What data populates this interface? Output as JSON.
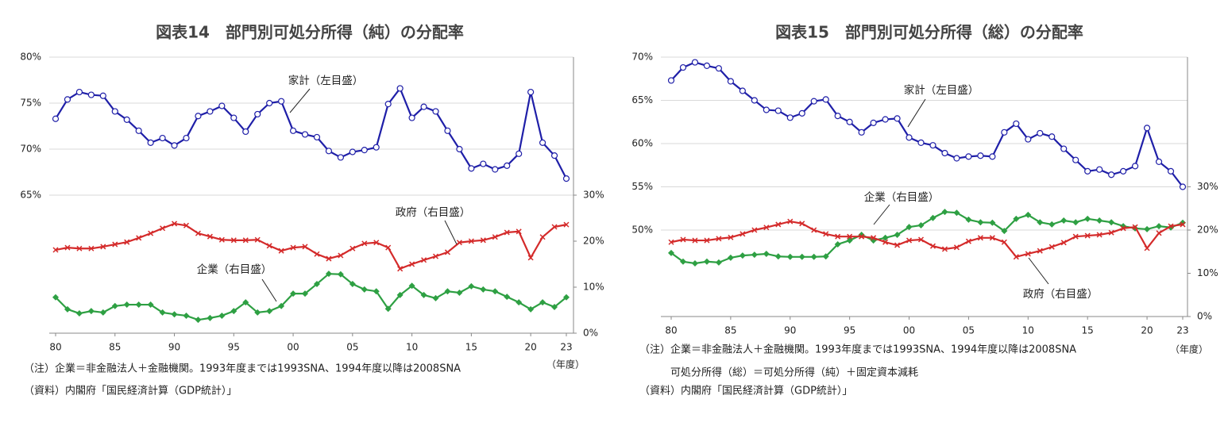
{
  "chart_data": [
    {
      "type": "line",
      "title": "図表14　部門別可処分所得（純）の分配率",
      "x": [
        1980,
        1981,
        1982,
        1983,
        1984,
        1985,
        1986,
        1987,
        1988,
        1989,
        1990,
        1991,
        1992,
        1993,
        1994,
        1995,
        1996,
        1997,
        1998,
        1999,
        2000,
        2001,
        2002,
        2003,
        2004,
        2005,
        2006,
        2007,
        2008,
        2009,
        2010,
        2011,
        2012,
        2013,
        2014,
        2015,
        2016,
        2017,
        2018,
        2019,
        2020,
        2021,
        2022,
        2023
      ],
      "xlim": [
        1980,
        2023
      ],
      "xticks": [
        {
          "value": 1980,
          "label": "80"
        },
        {
          "value": 1985,
          "label": "85"
        },
        {
          "value": 1990,
          "label": "90"
        },
        {
          "value": 1995,
          "label": "95"
        },
        {
          "value": 2000,
          "label": "00"
        },
        {
          "value": 2005,
          "label": "05"
        },
        {
          "value": 2010,
          "label": "10"
        },
        {
          "value": 2015,
          "label": "15"
        },
        {
          "value": 2020,
          "label": "20"
        },
        {
          "value": 2023,
          "label": "23"
        }
      ],
      "x_label": "（年度）",
      "ylim": [
        50,
        80
      ],
      "yticks": [
        {
          "value": 65,
          "label": "65%"
        },
        {
          "value": 70,
          "label": "70%"
        },
        {
          "value": 75,
          "label": "75%"
        },
        {
          "value": 80,
          "label": "80%"
        }
      ],
      "y2lim": [
        0,
        60
      ],
      "y2ticks": [
        {
          "value": 0,
          "label": "0%"
        },
        {
          "value": 10,
          "label": "10%"
        },
        {
          "value": 20,
          "label": "20%"
        },
        {
          "value": 30,
          "label": "30%"
        }
      ],
      "grid": true,
      "series": [
        {
          "name": "家計（左目盛）",
          "color": "#1f1fa8",
          "marker": "circle",
          "axis": "y",
          "values": [
            73.3,
            75.4,
            76.2,
            75.9,
            75.8,
            74.1,
            73.2,
            72.0,
            70.7,
            71.2,
            70.4,
            71.2,
            73.6,
            74.1,
            74.7,
            73.4,
            71.9,
            73.8,
            75.0,
            75.2,
            72.0,
            71.6,
            71.3,
            69.8,
            69.1,
            69.7,
            69.9,
            70.2,
            74.9,
            76.6,
            73.4,
            74.6,
            74.1,
            72.0,
            70.0,
            67.9,
            68.4,
            67.8,
            68.2,
            69.5,
            76.2,
            70.7,
            69.3,
            66.8
          ]
        },
        {
          "name": "政府（右目盛）",
          "color": "#d42a2a",
          "marker": "cross",
          "axis": "y2",
          "values": [
            18.1,
            18.6,
            18.4,
            18.4,
            18.8,
            19.3,
            19.8,
            20.7,
            21.7,
            22.8,
            23.8,
            23.4,
            21.7,
            21.0,
            20.3,
            20.2,
            20.2,
            20.3,
            19.0,
            17.9,
            18.6,
            18.8,
            17.2,
            16.2,
            16.9,
            18.4,
            19.5,
            19.7,
            18.6,
            14.0,
            15.0,
            15.9,
            16.7,
            17.6,
            19.7,
            20.0,
            20.2,
            20.9,
            21.9,
            22.1,
            16.4,
            20.9,
            23.1,
            23.6
          ]
        },
        {
          "name": "企業（右目盛）",
          "color": "#2ea043",
          "marker": "diamond",
          "axis": "y2",
          "values": [
            7.8,
            5.2,
            4.3,
            4.8,
            4.5,
            5.9,
            6.2,
            6.2,
            6.2,
            4.5,
            4.1,
            3.8,
            2.9,
            3.3,
            3.8,
            4.8,
            6.7,
            4.5,
            4.8,
            5.9,
            8.6,
            8.6,
            10.7,
            12.9,
            12.8,
            10.7,
            9.5,
            9.1,
            5.3,
            8.3,
            10.3,
            8.3,
            7.6,
            9.1,
            8.8,
            10.2,
            9.5,
            9.1,
            7.9,
            6.7,
            5.2,
            6.7,
            5.7,
            7.8
          ]
        }
      ],
      "notes": [
        "（注）企業＝非金融法人＋金融機関。1993年度までは1993SNA、1994年度以降は2008SNA",
        "（資料）内閣府「国民経済計算（GDP統計）」"
      ]
    },
    {
      "type": "line",
      "title": "図表15　部門別可処分所得（総）の分配率",
      "x": [
        1980,
        1981,
        1982,
        1983,
        1984,
        1985,
        1986,
        1987,
        1988,
        1989,
        1990,
        1991,
        1992,
        1993,
        1994,
        1995,
        1996,
        1997,
        1998,
        1999,
        2000,
        2001,
        2002,
        2003,
        2004,
        2005,
        2006,
        2007,
        2008,
        2009,
        2010,
        2011,
        2012,
        2013,
        2014,
        2015,
        2016,
        2017,
        2018,
        2019,
        2020,
        2021,
        2022,
        2023
      ],
      "xlim": [
        1980,
        2023
      ],
      "xticks": [
        {
          "value": 1980,
          "label": "80"
        },
        {
          "value": 1985,
          "label": "85"
        },
        {
          "value": 1990,
          "label": "90"
        },
        {
          "value": 1995,
          "label": "95"
        },
        {
          "value": 2000,
          "label": "00"
        },
        {
          "value": 2005,
          "label": "05"
        },
        {
          "value": 2010,
          "label": "10"
        },
        {
          "value": 2015,
          "label": "15"
        },
        {
          "value": 2020,
          "label": "20"
        },
        {
          "value": 2023,
          "label": "23"
        }
      ],
      "x_label": "（年度）",
      "ylim": [
        40,
        70
      ],
      "yticks": [
        {
          "value": 50,
          "label": "50%"
        },
        {
          "value": 55,
          "label": "55%"
        },
        {
          "value": 60,
          "label": "60%"
        },
        {
          "value": 65,
          "label": "65%"
        },
        {
          "value": 70,
          "label": "70%"
        }
      ],
      "y2lim": [
        0,
        60
      ],
      "y2ticks": [
        {
          "value": 0,
          "label": "0%"
        },
        {
          "value": 10,
          "label": "10%"
        },
        {
          "value": 20,
          "label": "20%"
        },
        {
          "value": 30,
          "label": "30%"
        }
      ],
      "grid": true,
      "series": [
        {
          "name": "家計（左目盛）",
          "color": "#1f1fa8",
          "marker": "circle",
          "axis": "y",
          "values": [
            67.3,
            68.8,
            69.4,
            69.0,
            68.7,
            67.2,
            66.1,
            65.0,
            63.9,
            63.8,
            63.0,
            63.5,
            64.9,
            65.1,
            63.2,
            62.5,
            61.3,
            62.4,
            62.8,
            62.9,
            60.7,
            60.1,
            59.8,
            58.9,
            58.3,
            58.5,
            58.6,
            58.5,
            61.3,
            62.3,
            60.5,
            61.2,
            60.8,
            59.4,
            58.1,
            56.8,
            57.0,
            56.4,
            56.8,
            57.4,
            61.8,
            57.9,
            56.8,
            55.0
          ]
        },
        {
          "name": "企業（右目盛）",
          "color": "#2ea043",
          "marker": "diamond",
          "axis": "y2",
          "values": [
            14.7,
            12.7,
            12.3,
            12.7,
            12.5,
            13.6,
            14.1,
            14.3,
            14.5,
            13.9,
            13.8,
            13.8,
            13.8,
            13.9,
            16.7,
            17.6,
            18.9,
            17.6,
            18.2,
            18.9,
            20.7,
            21.1,
            22.8,
            24.2,
            24.0,
            22.4,
            21.8,
            21.7,
            19.8,
            22.6,
            23.5,
            21.8,
            21.3,
            22.2,
            21.8,
            22.6,
            22.2,
            21.8,
            20.9,
            20.4,
            20.2,
            20.9,
            20.6,
            21.7
          ]
        },
        {
          "name": "政府（右目盛）",
          "color": "#d42a2a",
          "marker": "cross",
          "axis": "y2",
          "values": [
            17.2,
            17.8,
            17.6,
            17.6,
            18.0,
            18.3,
            19.1,
            20.0,
            20.6,
            21.3,
            22.0,
            21.5,
            20.0,
            19.1,
            18.5,
            18.5,
            18.5,
            18.2,
            17.2,
            16.5,
            17.6,
            17.8,
            16.3,
            15.6,
            16.0,
            17.4,
            18.2,
            18.2,
            17.2,
            13.8,
            14.5,
            15.2,
            16.1,
            17.1,
            18.5,
            18.7,
            18.9,
            19.4,
            20.4,
            20.7,
            15.8,
            19.3,
            20.9,
            21.3
          ]
        }
      ],
      "notes": [
        "（注）企業＝非金融法人＋金融機関。1993年度までは1993SNA、1994年度以降は2008SNA",
        "　　　可処分所得（総）＝可処分所得（純）＋固定資本減耗",
        "（資料）内閣府「国民経済計算（GDP統計）」"
      ]
    }
  ]
}
